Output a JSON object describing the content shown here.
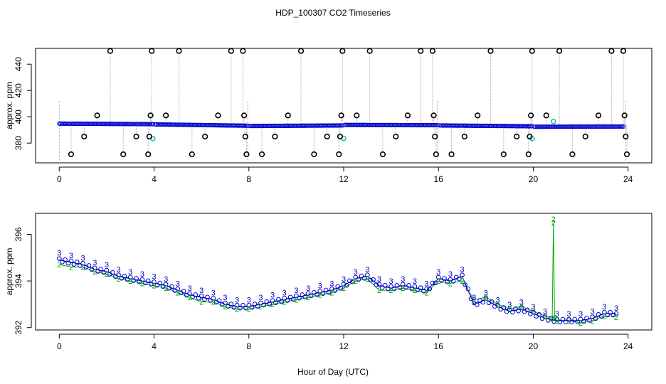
{
  "figure": {
    "title": "HDP_100307  CO2 Timeseries",
    "xlabel": "Hour of Day (UTC)"
  },
  "colors": {
    "axis": "#000000",
    "trace": "#aaaaaa",
    "series_main": "#0000cc",
    "series_alt": "#00bbbb",
    "label_2": "#00aa00",
    "label_3": "#0000cc"
  },
  "chart_data": [
    {
      "type": "scatter",
      "panel": "top",
      "ylabel": "approx. ppm",
      "xlim": [
        -1,
        25
      ],
      "ylim": [
        365,
        452
      ],
      "xticks": [
        0,
        4,
        8,
        12,
        16,
        20,
        24
      ],
      "yticks": [
        380,
        400,
        420,
        440
      ],
      "baseline_segments": [
        {
          "x0": 0.0,
          "x1": 3.95,
          "y0": 394.8,
          "y1": 394.4
        },
        {
          "x0": 4.05,
          "x1": 7.95,
          "y0": 394.2,
          "y1": 393.2
        },
        {
          "x0": 8.05,
          "x1": 11.95,
          "y0": 393.0,
          "y1": 393.4
        },
        {
          "x0": 12.05,
          "x1": 15.95,
          "y0": 393.8,
          "y1": 393.6
        },
        {
          "x0": 16.05,
          "x1": 19.95,
          "y0": 393.4,
          "y1": 392.8
        },
        {
          "x0": 20.05,
          "x1": 23.8,
          "y0": 392.4,
          "y1": 392.6
        }
      ],
      "cyan_points": [
        {
          "x": 3.95,
          "y": 383.5
        },
        {
          "x": 12.0,
          "y": 383.5
        },
        {
          "x": 19.95,
          "y": 383.5
        },
        {
          "x": 20.85,
          "y": 396.5
        }
      ],
      "black_markers": [
        {
          "x": 0.5,
          "y": 371.5
        },
        {
          "x": 1.05,
          "y": 385
        },
        {
          "x": 1.6,
          "y": 401
        },
        {
          "x": 2.15,
          "y": 450
        },
        {
          "x": 2.7,
          "y": 371.5
        },
        {
          "x": 3.25,
          "y": 385
        },
        {
          "x": 3.75,
          "y": 371.5
        },
        {
          "x": 3.8,
          "y": 385
        },
        {
          "x": 3.85,
          "y": 401
        },
        {
          "x": 3.9,
          "y": 450
        },
        {
          "x": 4.5,
          "y": 401
        },
        {
          "x": 5.05,
          "y": 450
        },
        {
          "x": 5.6,
          "y": 371.5
        },
        {
          "x": 6.15,
          "y": 385
        },
        {
          "x": 6.7,
          "y": 401
        },
        {
          "x": 7.25,
          "y": 450
        },
        {
          "x": 7.75,
          "y": 450
        },
        {
          "x": 7.8,
          "y": 401
        },
        {
          "x": 7.85,
          "y": 385
        },
        {
          "x": 7.9,
          "y": 371.5
        },
        {
          "x": 8.55,
          "y": 371.5
        },
        {
          "x": 9.1,
          "y": 385
        },
        {
          "x": 9.65,
          "y": 401
        },
        {
          "x": 10.2,
          "y": 450
        },
        {
          "x": 10.75,
          "y": 371.5
        },
        {
          "x": 11.3,
          "y": 385
        },
        {
          "x": 11.8,
          "y": 371.5
        },
        {
          "x": 11.85,
          "y": 385
        },
        {
          "x": 11.9,
          "y": 401
        },
        {
          "x": 11.95,
          "y": 450
        },
        {
          "x": 12.55,
          "y": 401
        },
        {
          "x": 13.1,
          "y": 450
        },
        {
          "x": 13.65,
          "y": 371.5
        },
        {
          "x": 14.2,
          "y": 385
        },
        {
          "x": 14.7,
          "y": 401
        },
        {
          "x": 15.25,
          "y": 450
        },
        {
          "x": 15.75,
          "y": 450
        },
        {
          "x": 15.8,
          "y": 401
        },
        {
          "x": 15.85,
          "y": 385
        },
        {
          "x": 15.9,
          "y": 371.5
        },
        {
          "x": 16.55,
          "y": 371.5
        },
        {
          "x": 17.1,
          "y": 385
        },
        {
          "x": 17.65,
          "y": 401
        },
        {
          "x": 18.2,
          "y": 450
        },
        {
          "x": 18.75,
          "y": 371.5
        },
        {
          "x": 19.3,
          "y": 385
        },
        {
          "x": 19.8,
          "y": 371.5
        },
        {
          "x": 19.85,
          "y": 385
        },
        {
          "x": 19.9,
          "y": 401
        },
        {
          "x": 19.95,
          "y": 450
        },
        {
          "x": 20.55,
          "y": 401
        },
        {
          "x": 21.1,
          "y": 450
        },
        {
          "x": 21.65,
          "y": 371.5
        },
        {
          "x": 22.2,
          "y": 385
        },
        {
          "x": 22.75,
          "y": 401
        },
        {
          "x": 23.3,
          "y": 450
        },
        {
          "x": 23.8,
          "y": 450
        },
        {
          "x": 23.85,
          "y": 401
        },
        {
          "x": 23.9,
          "y": 385
        },
        {
          "x": 23.95,
          "y": 371.5
        }
      ]
    },
    {
      "type": "line",
      "panel": "bottom",
      "ylabel": "approx. ppm",
      "xlim": [
        -1,
        25
      ],
      "ylim": [
        391.9,
        396.9
      ],
      "xticks": [
        0,
        4,
        8,
        12,
        16,
        20,
        24
      ],
      "yticks": [
        392,
        394,
        396
      ],
      "series": [
        {
          "name": "3",
          "x": [
            0.0,
            0.5,
            1.0,
            1.5,
            2.0,
            2.5,
            3.0,
            3.5,
            4.0,
            4.5,
            5.0,
            5.5,
            6.0,
            6.5,
            7.0,
            7.5,
            8.0,
            8.5,
            9.0,
            9.5,
            10.0,
            10.5,
            11.0,
            11.5,
            12.0,
            12.5,
            13.0,
            13.5,
            14.0,
            14.5,
            15.0,
            15.5,
            16.0,
            16.5,
            17.0,
            17.5,
            18.0,
            18.5,
            19.0,
            19.5,
            20.0,
            20.5,
            21.0,
            21.5,
            22.0,
            22.5,
            23.0,
            23.5
          ],
          "values": [
            394.9,
            394.8,
            394.7,
            394.5,
            394.4,
            394.2,
            394.1,
            394.0,
            393.9,
            393.8,
            393.6,
            393.4,
            393.3,
            393.2,
            393.0,
            392.9,
            392.9,
            393.0,
            393.1,
            393.2,
            393.3,
            393.4,
            393.5,
            393.6,
            393.8,
            394.1,
            394.2,
            393.8,
            393.7,
            393.8,
            393.7,
            393.6,
            394.1,
            394.0,
            394.2,
            393.0,
            393.2,
            392.9,
            392.7,
            392.8,
            392.6,
            392.4,
            392.3,
            392.3,
            392.3,
            392.4,
            392.6,
            392.6
          ]
        },
        {
          "name": "2",
          "x": [
            0.0,
            0.5,
            1.0,
            1.5,
            2.0,
            2.5,
            3.0,
            3.5,
            4.0,
            4.5,
            5.0,
            5.5,
            6.0,
            6.5,
            7.0,
            7.5,
            8.0,
            8.5,
            9.0,
            9.5,
            10.0,
            10.5,
            11.0,
            11.5,
            12.0,
            12.5,
            13.0,
            13.5,
            14.0,
            14.5,
            15.0,
            15.5,
            16.0,
            16.5,
            17.0,
            17.5,
            18.0,
            18.5,
            19.0,
            19.5,
            20.0,
            20.5,
            20.8,
            20.85,
            20.9,
            21.0,
            21.5,
            22.0,
            22.5,
            23.0,
            23.5
          ],
          "values": [
            394.7,
            394.6,
            394.6,
            394.4,
            394.3,
            394.1,
            394.0,
            393.9,
            393.8,
            393.7,
            393.5,
            393.3,
            393.1,
            393.1,
            392.9,
            392.8,
            392.8,
            392.9,
            393.0,
            393.1,
            393.2,
            393.3,
            393.4,
            393.5,
            393.7,
            394.0,
            394.1,
            393.6,
            393.6,
            393.7,
            393.6,
            393.5,
            394.0,
            393.9,
            394.0,
            393.2,
            393.3,
            393.0,
            392.8,
            392.9,
            392.7,
            392.5,
            392.4,
            396.5,
            392.4,
            392.3,
            392.3,
            392.2,
            392.3,
            392.5,
            392.5
          ]
        }
      ]
    }
  ]
}
